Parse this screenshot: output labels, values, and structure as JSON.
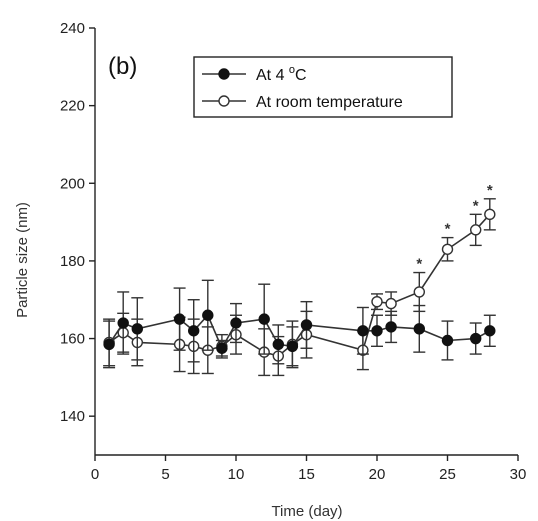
{
  "chart_data": {
    "type": "line",
    "panel_label": "(b)",
    "xlabel": "Time (day)",
    "ylabel": "Particle size (nm)",
    "xlim": [
      0,
      30
    ],
    "ylim": [
      130,
      240
    ],
    "x_ticks": [
      0,
      5,
      10,
      15,
      20,
      25,
      30
    ],
    "y_ticks": [
      140,
      160,
      180,
      200,
      220,
      240
    ],
    "grid": false,
    "legend_position": "top-center",
    "series": [
      {
        "name": "At 4 °C",
        "name_main": "At 4 ",
        "name_sup": "o",
        "name_tail": "C",
        "marker": "filled-circle",
        "color": "#111111",
        "x": [
          1,
          2,
          3,
          6,
          7,
          8,
          9,
          10,
          12,
          13,
          14,
          15,
          19,
          20,
          21,
          23,
          25,
          27,
          28
        ],
        "y": [
          158.5,
          164,
          162.5,
          165,
          162,
          166,
          157.5,
          164,
          165,
          158.5,
          158,
          163.5,
          162,
          162,
          163,
          162.5,
          159.5,
          160,
          162
        ],
        "err": [
          6,
          8,
          8,
          8,
          8,
          9,
          2,
          5,
          9,
          5,
          5,
          6,
          6,
          4,
          4,
          6,
          5,
          4,
          4
        ]
      },
      {
        "name": "At room temperature",
        "marker": "open-circle",
        "color": "#333333",
        "x": [
          1,
          2,
          3,
          6,
          7,
          8,
          9,
          10,
          12,
          13,
          14,
          15,
          19,
          20,
          21,
          23,
          25,
          27,
          28
        ],
        "y": [
          159,
          161.5,
          159,
          158.5,
          158,
          157,
          158,
          161,
          156.5,
          155.5,
          158.5,
          161,
          157,
          169.5,
          169,
          172,
          183,
          188,
          192
        ],
        "err": [
          6,
          5,
          6,
          7,
          7,
          6,
          3,
          5,
          6,
          5,
          6,
          6,
          5,
          2,
          3,
          5,
          3,
          4,
          4
        ],
        "significant_x": [
          23,
          25,
          27,
          28
        ],
        "significance_marker": "*"
      }
    ]
  }
}
